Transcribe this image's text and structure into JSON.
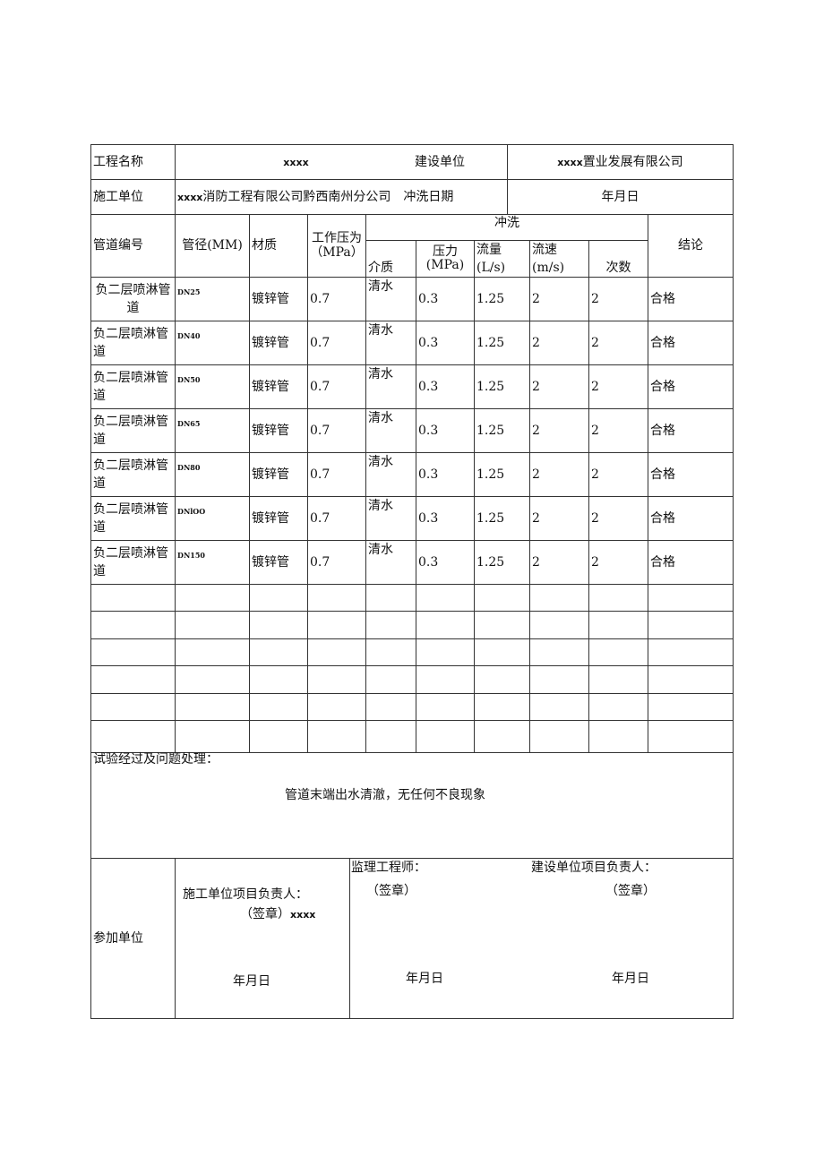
{
  "header": {
    "project_name_label": "工程名称",
    "project_name": "xxxx",
    "builder_label": "建设单位",
    "builder_prefix": "xxxx",
    "builder_value": "置业发展有限公司",
    "contractor_label": "施工单位",
    "contractor_prefix": "xxxx",
    "contractor_value": "消防工程有限公司黔西南州分公司",
    "flush_date_label": "冲洗日期",
    "flush_date": "年月日"
  },
  "columns": {
    "pipe_no": "管道编号",
    "diameter": "管径(MM)",
    "material": "材质",
    "work_pressure": "工作压为（MPa）",
    "flush": "冲洗",
    "medium": "介质",
    "pressure": "压力(MPa)",
    "flow": "流量(L/s)",
    "velocity": "流速(m/s)",
    "times": "次数",
    "conclusion": "结论"
  },
  "rows": [
    {
      "pipe": "负二层喷淋管道",
      "dn": "DN25",
      "material": "镀锌管",
      "wp": "0.7",
      "medium": "清水",
      "pressure": "0.3",
      "flow": "1.25",
      "velocity": "2",
      "times": "2",
      "result": "合格"
    },
    {
      "pipe": "负二层喷淋管道",
      "dn": "DN40",
      "material": "镀锌管",
      "wp": "0.7",
      "medium": "清水",
      "pressure": "0.3",
      "flow": "1.25",
      "velocity": "2",
      "times": "2",
      "result": "合格"
    },
    {
      "pipe": "负二层喷淋管道",
      "dn": "DN50",
      "material": "镀锌管",
      "wp": "0.7",
      "medium": "清水",
      "pressure": "0.3",
      "flow": "1.25",
      "velocity": "2",
      "times": "2",
      "result": "合格"
    },
    {
      "pipe": "负二层喷淋管道",
      "dn": "DN65",
      "material": "镀锌管",
      "wp": "0.7",
      "medium": "清水",
      "pressure": "0.3",
      "flow": "1.25",
      "velocity": "2",
      "times": "2",
      "result": "合格"
    },
    {
      "pipe": "负二层喷淋管道",
      "dn": "DN80",
      "material": "镀锌管",
      "wp": "0.7",
      "medium": "清水",
      "pressure": "0.3",
      "flow": "1.25",
      "velocity": "2",
      "times": "2",
      "result": "合格"
    },
    {
      "pipe": "负二层喷淋管道",
      "dn": "DNlOO",
      "material": "镀锌管",
      "wp": "0.7",
      "medium": "清水",
      "pressure": "0.3",
      "flow": "1.25",
      "velocity": "2",
      "times": "2",
      "result": "合格"
    },
    {
      "pipe": "负二层喷淋管道",
      "dn": "DN150",
      "material": "镀锌管",
      "wp": "0.7",
      "medium": "清水",
      "pressure": "0.3",
      "flow": "1.25",
      "velocity": "2",
      "times": "2",
      "result": "合格"
    }
  ],
  "process": {
    "label": "试验经过及问题处理：",
    "text": "管道末端出水清澈，无任何不良现象"
  },
  "sign": {
    "label": "参加单位",
    "contractor_lead": "施工单位项目负责人：",
    "contractor_seal": "（签章）",
    "contractor_name": "xxxx",
    "contractor_date": "年月日",
    "supervisor": "监理工程师：",
    "supervisor_seal": "（签章）",
    "supervisor_date": "年月日",
    "owner_lead": "建设单位项目负责人：",
    "owner_seal": "（签章）",
    "owner_date": "年月日"
  }
}
